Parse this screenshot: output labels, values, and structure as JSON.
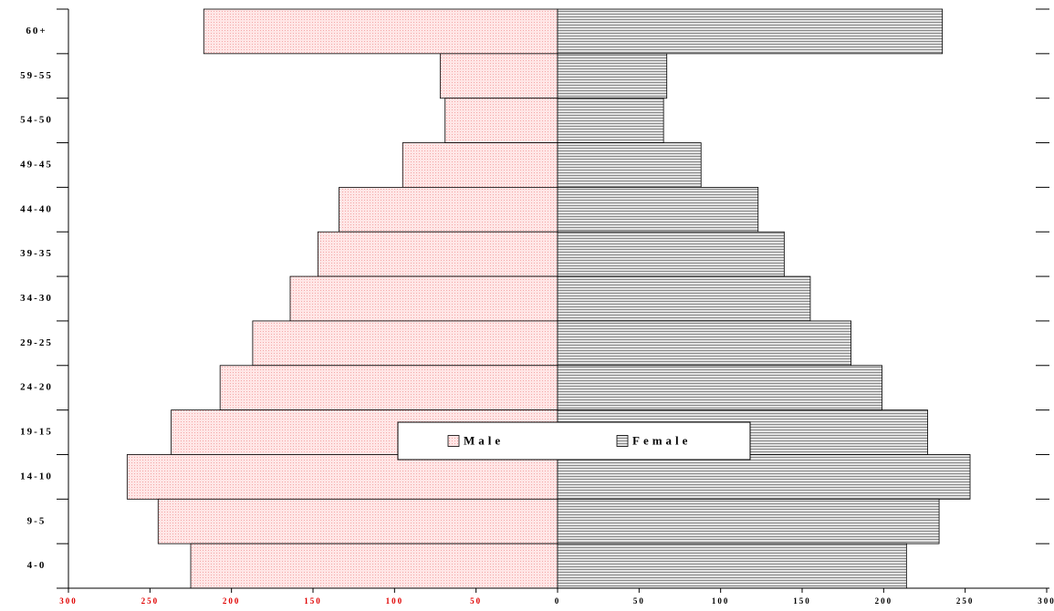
{
  "chart_data": {
    "type": "pyramid",
    "categories": [
      "60+",
      "59-55",
      "54-50",
      "49-45",
      "44-40",
      "39-35",
      "34-30",
      "29-25",
      "24-20",
      "19-15",
      "14-10",
      "9-5",
      "4-0"
    ],
    "series": [
      {
        "name": "Male",
        "color": "#ffd9d9",
        "values": [
          -217,
          -72,
          -69,
          -95,
          -134,
          -147,
          -164,
          -187,
          -207,
          -237,
          -264,
          -245,
          -225
        ]
      },
      {
        "name": "Female",
        "color": "#c8c8c8",
        "values": [
          236,
          67,
          65,
          88,
          123,
          139,
          155,
          180,
          199,
          227,
          253,
          234,
          214
        ]
      }
    ],
    "xlim": [
      -300,
      300
    ],
    "xticks": [
      {
        "value": -300,
        "label": "300"
      },
      {
        "value": -250,
        "label": "250"
      },
      {
        "value": -200,
        "label": "200"
      },
      {
        "value": -150,
        "label": "150"
      },
      {
        "value": -100,
        "label": "100"
      },
      {
        "value": -50,
        "label": "50"
      },
      0,
      50,
      100,
      150,
      200,
      250,
      300
    ],
    "legend": "center"
  }
}
